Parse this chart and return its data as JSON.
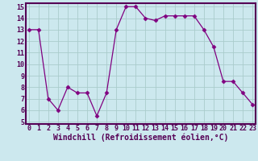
{
  "x": [
    0,
    1,
    2,
    3,
    4,
    5,
    6,
    7,
    8,
    9,
    10,
    11,
    12,
    13,
    14,
    15,
    16,
    17,
    18,
    19,
    20,
    21,
    22,
    23
  ],
  "y": [
    13,
    13,
    7,
    6,
    8,
    7.5,
    7.5,
    5.5,
    7.5,
    13,
    15,
    15,
    14,
    13.8,
    14.2,
    14.2,
    14.2,
    14.2,
    13,
    11.5,
    8.5,
    8.5,
    7.5,
    6.5
  ],
  "xlim": [
    0,
    23
  ],
  "ylim": [
    5,
    15
  ],
  "yticks": [
    5,
    6,
    7,
    8,
    9,
    10,
    11,
    12,
    13,
    14,
    15
  ],
  "xticks": [
    0,
    1,
    2,
    3,
    4,
    5,
    6,
    7,
    8,
    9,
    10,
    11,
    12,
    13,
    14,
    15,
    16,
    17,
    18,
    19,
    20,
    21,
    22,
    23
  ],
  "xlabel": "Windchill (Refroidissement éolien,°C)",
  "line_color": "#800080",
  "marker": "D",
  "marker_size": 2.5,
  "bg_color": "#cce8ee",
  "grid_color": "#aacccc",
  "border_color": "#550055",
  "tick_color": "#550055",
  "tick_label_fontsize": 6,
  "xlabel_fontsize": 7
}
